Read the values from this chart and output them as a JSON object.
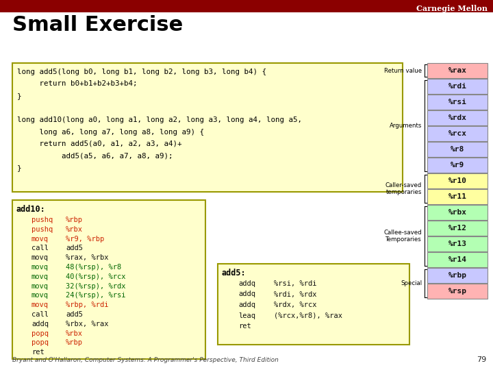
{
  "title": "Small Exercise",
  "header_color": "#8B0000",
  "header_text": "Carnegie Mellon",
  "bg_color": "#ffffff",
  "code_box1_lines": [
    "long add5(long b0, long b1, long b2, long b3, long b4) {",
    "     return b0+b1+b2+b3+b4;",
    "}",
    "",
    "long add10(long a0, long a1, long a2, long a3, long a4, long a5,",
    "     long a6, long a7, long a8, long a9) {",
    "     return add5(a0, a1, a2, a3, a4)+",
    "          add5(a5, a6, a7, a8, a9);",
    "}"
  ],
  "code_box1_bg": "#ffffcc",
  "code_box1_border": "#999900",
  "code_box2_label": "add10:",
  "code_box2_lines": [
    [
      "pushq",
      "%rbp",
      "red"
    ],
    [
      "pushq",
      "%rbx",
      "red"
    ],
    [
      "movq",
      "%r9, %rbp",
      "red"
    ],
    [
      "call",
      "add5",
      "black"
    ],
    [
      "movq",
      "%rax, %rbx",
      "black"
    ],
    [
      "movq",
      "48(%rsp), %r8",
      "green"
    ],
    [
      "movq",
      "40(%rsp), %rcx",
      "green"
    ],
    [
      "movq",
      "32(%rsp), %rdx",
      "green"
    ],
    [
      "movq",
      "24(%rsp), %rsi",
      "green"
    ],
    [
      "movq",
      "%rbp, %rdi",
      "red"
    ],
    [
      "call",
      "add5",
      "black"
    ],
    [
      "addq",
      "%rbx, %rax",
      "black"
    ],
    [
      "popq",
      "%rbx",
      "red"
    ],
    [
      "popq",
      "%rbp",
      "red"
    ],
    [
      "ret",
      "",
      "black"
    ]
  ],
  "code_box2_bg": "#ffffcc",
  "code_box2_border": "#999900",
  "code_box3_label": "add5:",
  "code_box3_lines": [
    [
      "addq",
      "%rsi, %rdi",
      "black"
    ],
    [
      "addq",
      "%rdi, %rdx",
      "black"
    ],
    [
      "addq",
      "%rdx, %rcx",
      "black"
    ],
    [
      "leaq",
      "(%rcx,%r8), %rax",
      "black"
    ],
    [
      "ret",
      "",
      "black"
    ]
  ],
  "code_box3_bg": "#ffffcc",
  "code_box3_border": "#999900",
  "registers": [
    {
      "name": "%rax",
      "color": "#ffb3b3"
    },
    {
      "name": "%rdi",
      "color": "#c8c8ff"
    },
    {
      "name": "%rsi",
      "color": "#c8c8ff"
    },
    {
      "name": "%rdx",
      "color": "#c8c8ff"
    },
    {
      "name": "%rcx",
      "color": "#c8c8ff"
    },
    {
      "name": "%r8",
      "color": "#c8c8ff"
    },
    {
      "name": "%r9",
      "color": "#c8c8ff"
    },
    {
      "name": "%r10",
      "color": "#ffffa0"
    },
    {
      "name": "%r11",
      "color": "#ffffa0"
    },
    {
      "name": "%rbx",
      "color": "#b3ffb3"
    },
    {
      "name": "%r12",
      "color": "#b3ffb3"
    },
    {
      "name": "%r13",
      "color": "#b3ffb3"
    },
    {
      "name": "%r14",
      "color": "#b3ffb3"
    },
    {
      "name": "%rbp",
      "color": "#c8c8ff"
    },
    {
      "name": "%rsp",
      "color": "#ffb3b3"
    }
  ],
  "reg_groups": [
    {
      "label": "Return value",
      "start": 0,
      "end": 0
    },
    {
      "label": "Arguments",
      "start": 1,
      "end": 6
    },
    {
      "label": "Caller-saved\ntemporaries",
      "start": 7,
      "end": 8
    },
    {
      "label": "Callee-saved\nTemporaries",
      "start": 9,
      "end": 12
    },
    {
      "label": "Special",
      "start": 13,
      "end": 14
    }
  ],
  "footer_text": "Bryant and O'Hallaron, Computer Systems: A Programmer's Perspective, Third Edition",
  "page_num": "79"
}
